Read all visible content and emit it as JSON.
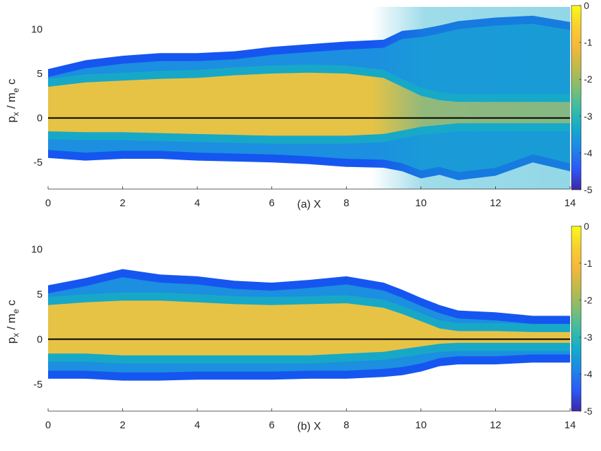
{
  "figure": {
    "colors": {
      "accent_yellow": "#f9c63a",
      "accent_blue": "#0a3cff",
      "zero_line": "#000000",
      "axis": "#262626"
    },
    "colormap": [
      "#3e26a8",
      "#2c58f5",
      "#1f85e8",
      "#12aacd",
      "#3cbca4",
      "#82bd6f",
      "#c1b94a",
      "#f4b93a",
      "#f9cf2f",
      "#f9fb15"
    ]
  },
  "chart_data": [
    {
      "type": "heatmap",
      "subplot_label": "(a)",
      "xlabel": "X",
      "ylabel": "p_x / m_e c",
      "ylabel_main": "p",
      "ylabel_sub1": "x",
      "ylabel_mid": " / m",
      "ylabel_sub2": "e",
      "ylabel_end": " c",
      "xlim": [
        0,
        14
      ],
      "ylim": [
        -8,
        12.5
      ],
      "x_ticks": [
        0,
        2,
        4,
        6,
        8,
        10,
        12,
        14
      ],
      "y_ticks": [
        -5,
        0,
        5,
        10
      ],
      "colorbar": {
        "range": [
          -5,
          0
        ],
        "ticks": [
          0,
          -1,
          -2,
          -3,
          -4,
          -5
        ],
        "colormap": "parula",
        "scale": "log10"
      },
      "reference_line": {
        "y": 0,
        "color": "#000000"
      },
      "envelope": {
        "x": [
          0,
          1,
          2,
          3,
          4,
          5,
          6,
          7,
          8,
          9,
          9.5,
          10,
          10.5,
          11,
          12,
          13,
          14
        ],
        "upper": [
          5.5,
          6.5,
          7.0,
          7.3,
          7.3,
          7.5,
          8.0,
          8.3,
          8.6,
          8.8,
          9.8,
          10.0,
          10.4,
          10.9,
          11.3,
          11.5,
          10.8
        ],
        "lower": [
          -4.5,
          -4.8,
          -4.6,
          -4.6,
          -4.8,
          -4.9,
          -5.0,
          -5.2,
          -5.5,
          -5.6,
          -6.0,
          -6.8,
          -6.4,
          -7.0,
          -6.5,
          -5.0,
          -6.0
        ],
        "core_upper": [
          3.5,
          4.0,
          4.2,
          4.4,
          4.5,
          4.8,
          5.0,
          5.1,
          5.0,
          4.5,
          3.5,
          2.5,
          2.0,
          1.8,
          1.8,
          1.8,
          1.8
        ],
        "core_lower": [
          -1.5,
          -1.6,
          -1.6,
          -1.7,
          -1.8,
          -1.9,
          -2.0,
          -2.0,
          -2.0,
          -1.8,
          -1.4,
          -1.0,
          -0.8,
          -0.6,
          -0.6,
          -0.6,
          -0.6
        ]
      }
    },
    {
      "type": "heatmap",
      "subplot_label": "(b)",
      "xlabel": "X",
      "ylabel": "p_x / m_e c",
      "ylabel_main": "p",
      "ylabel_sub1": "x",
      "ylabel_mid": " / m",
      "ylabel_sub2": "e",
      "ylabel_end": " c",
      "xlim": [
        0,
        14
      ],
      "ylim": [
        -8,
        12.5
      ],
      "x_ticks": [
        0,
        2,
        4,
        6,
        8,
        10,
        12,
        14
      ],
      "y_ticks": [
        -5,
        0,
        5,
        10
      ],
      "colorbar": {
        "range": [
          -5,
          0
        ],
        "ticks": [
          0,
          -1,
          -2,
          -3,
          -4,
          -5
        ],
        "colormap": "parula",
        "scale": "log10"
      },
      "reference_line": {
        "y": 0,
        "color": "#000000"
      },
      "envelope": {
        "x": [
          0,
          1,
          2,
          3,
          4,
          5,
          6,
          7,
          8,
          9,
          9.5,
          10,
          10.5,
          11,
          12,
          13,
          14
        ],
        "upper": [
          6.0,
          6.8,
          7.8,
          7.2,
          7.0,
          6.5,
          6.3,
          6.6,
          7.0,
          6.3,
          5.5,
          4.6,
          3.8,
          3.2,
          3.0,
          2.6,
          2.6
        ],
        "lower": [
          -4.4,
          -4.4,
          -4.6,
          -4.6,
          -4.5,
          -4.5,
          -4.5,
          -4.4,
          -4.4,
          -4.2,
          -4.0,
          -3.6,
          -3.0,
          -2.8,
          -2.8,
          -2.6,
          -2.6
        ],
        "core_upper": [
          3.8,
          4.1,
          4.3,
          4.3,
          4.1,
          3.9,
          3.8,
          3.9,
          4.0,
          3.5,
          2.8,
          2.0,
          1.2,
          0.9,
          0.9,
          0.8,
          0.8
        ],
        "core_lower": [
          -1.6,
          -1.6,
          -1.8,
          -1.8,
          -1.8,
          -1.8,
          -1.8,
          -1.8,
          -1.6,
          -1.4,
          -1.1,
          -0.8,
          -0.5,
          -0.4,
          -0.4,
          -0.4,
          -0.4
        ]
      }
    }
  ]
}
